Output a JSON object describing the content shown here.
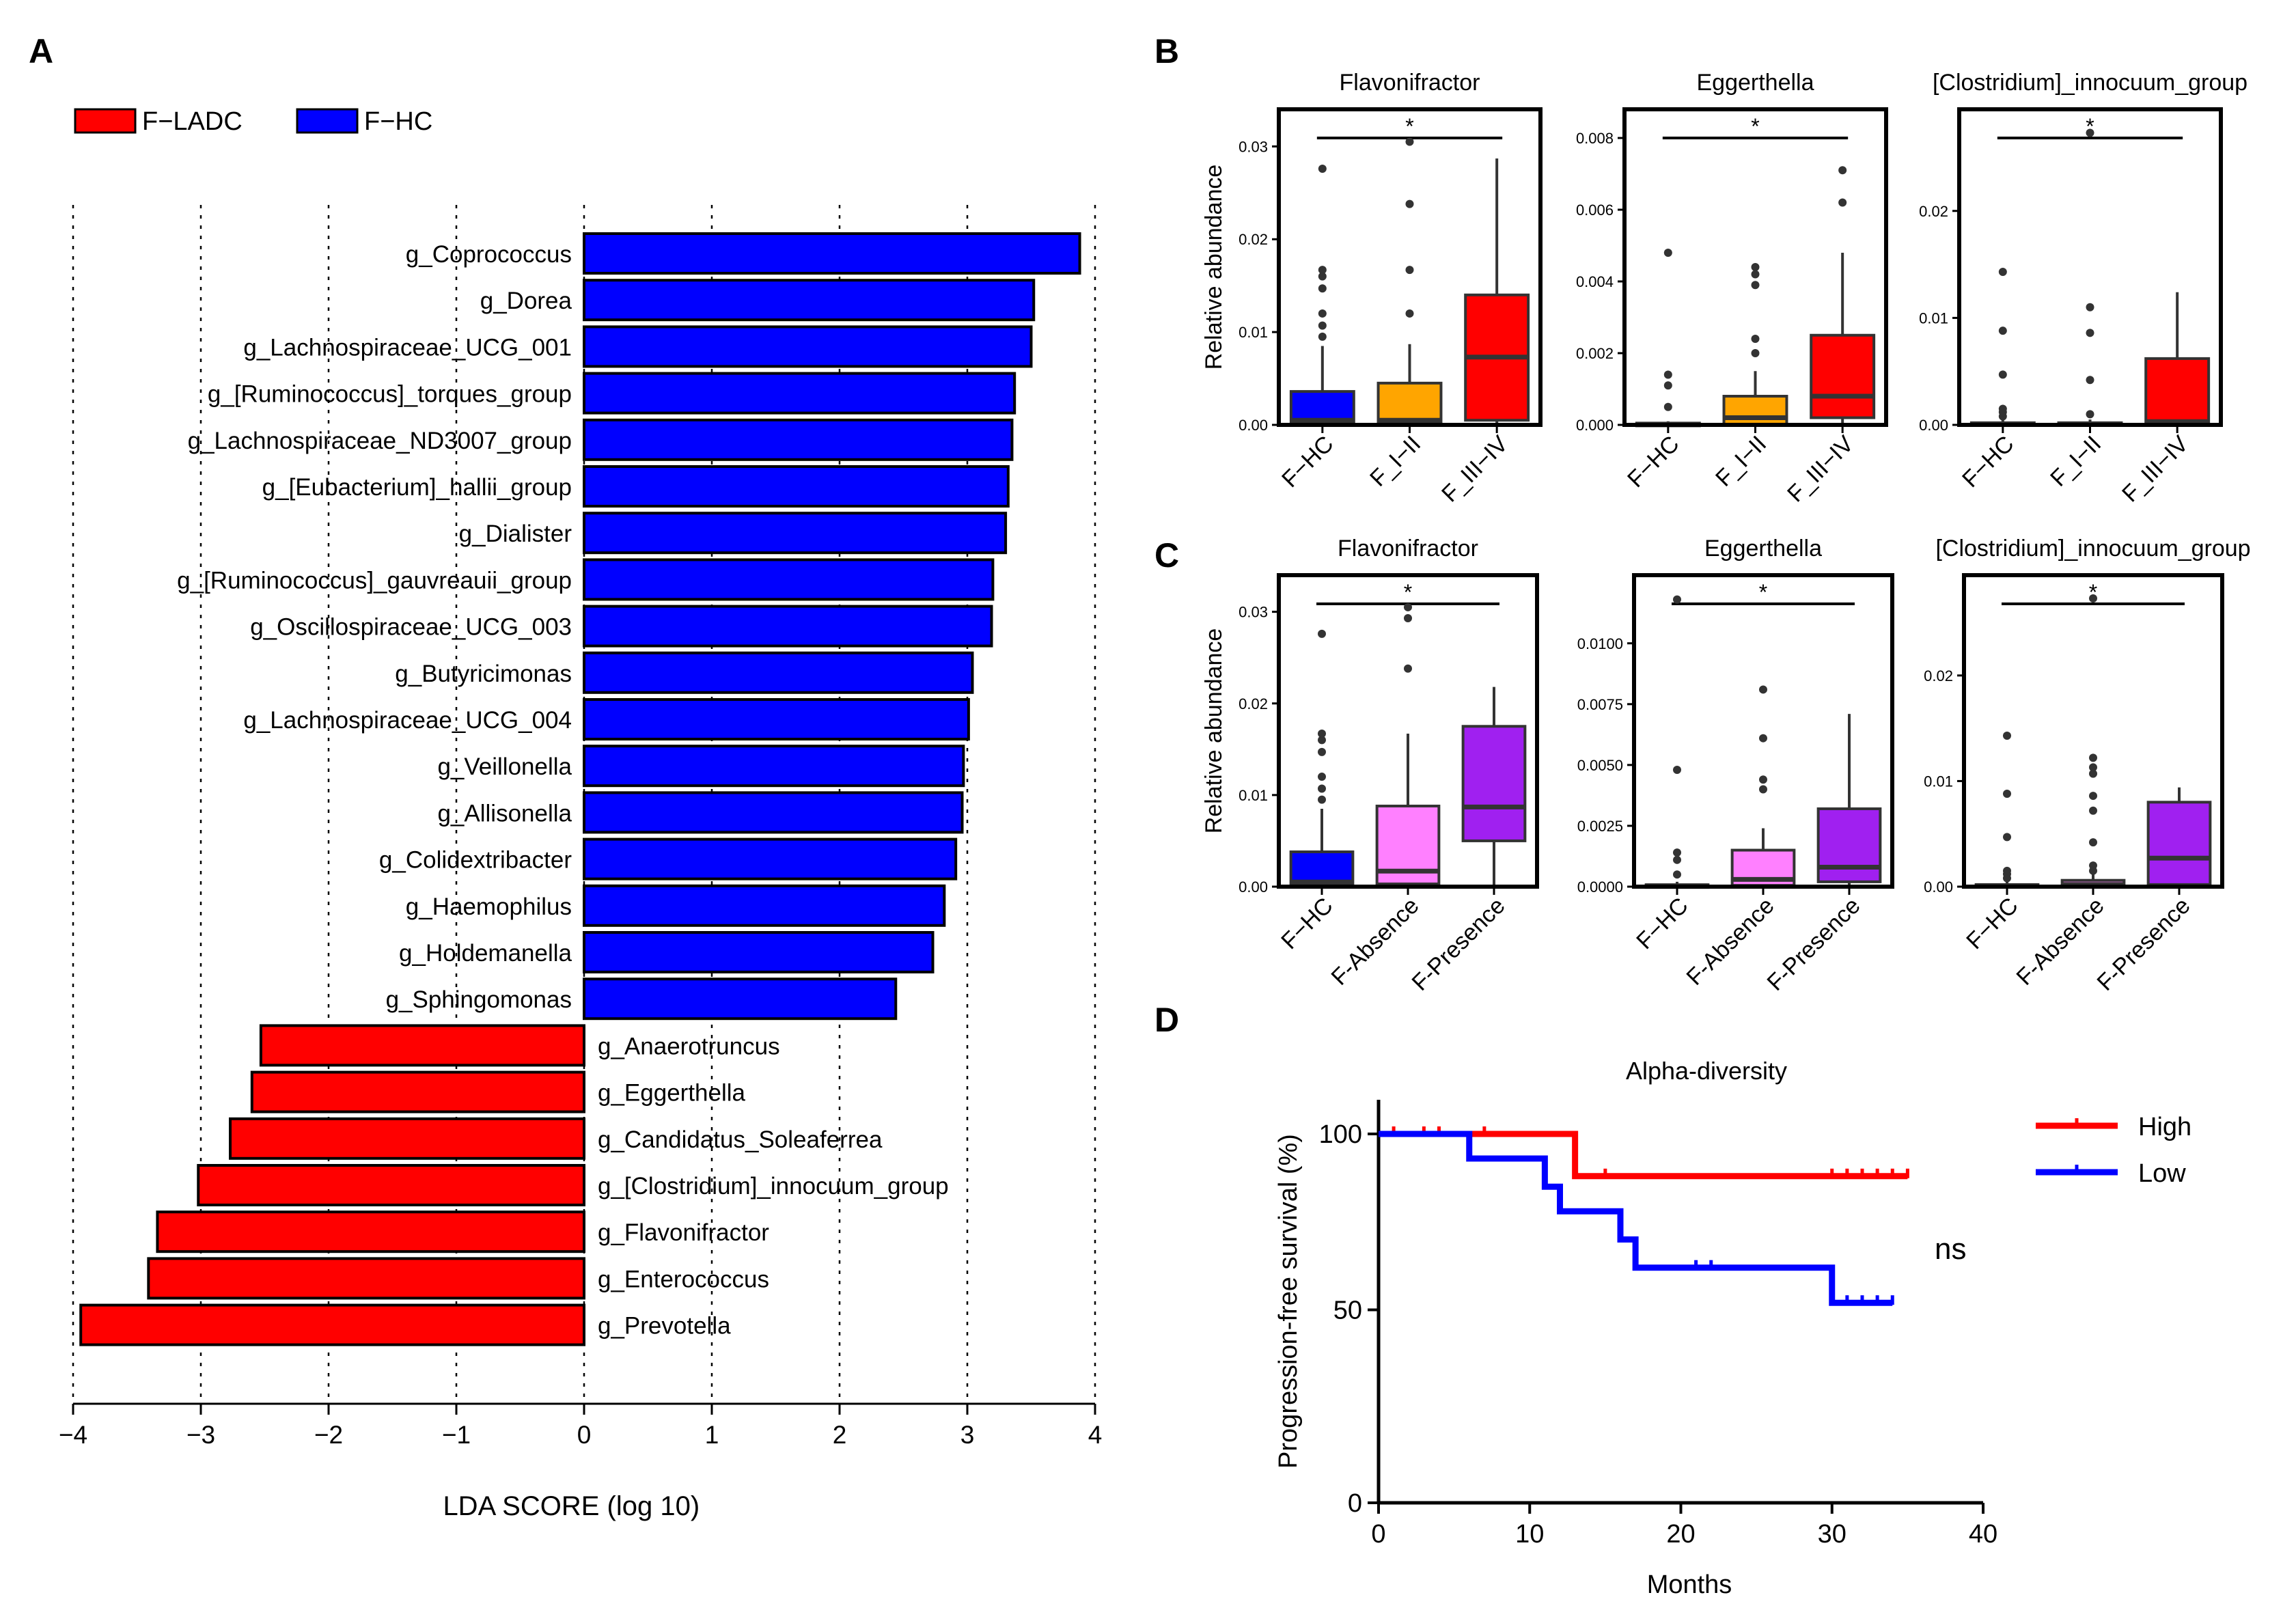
{
  "chart_data": [
    {
      "panel": "A",
      "type": "bar",
      "orientation": "horizontal",
      "xlabel": "LDA SCORE (log 10)",
      "xlim": [
        -4,
        4
      ],
      "xticks": [
        "−4",
        "−3",
        "−2",
        "−1",
        "0",
        "1",
        "2",
        "3",
        "4"
      ],
      "legend": {
        "position": "top-left",
        "items": [
          {
            "label": "F−LADC",
            "color": "#ff0000"
          },
          {
            "label": "F−HC",
            "color": "#0000ff"
          }
        ]
      },
      "categories": [
        "g_Coprococcus",
        "g_Dorea",
        "g_Lachnospiraceae_UCG_001",
        "g_[Ruminococcus]_torques_group",
        "g_Lachnospiraceae_ND3007_group",
        "g_[Eubacterium]_hallii_group",
        "g_Dialister",
        "g_[Ruminococcus]_gauvreauii_group",
        "g_Oscillospiraceae_UCG_003",
        "g_Butyricimonas",
        "g_Lachnospiraceae_UCG_004",
        "g_Veillonella",
        "g_Allisonella",
        "g_Colidextribacter",
        "g_Haemophilus",
        "g_Holdemanella",
        "g_Sphingomonas",
        "g_Anaerotruncus",
        "g_Eggerthella",
        "g_Candidatus_Soleaferrea",
        "g_[Clostridium]_innocuum_group",
        "g_Flavonifractor",
        "g_Enterococcus",
        "g_Prevotella"
      ],
      "values": [
        3.88,
        3.52,
        3.5,
        3.37,
        3.35,
        3.32,
        3.3,
        3.2,
        3.19,
        3.04,
        3.01,
        2.97,
        2.96,
        2.91,
        2.82,
        2.73,
        2.44,
        -2.53,
        -2.6,
        -2.77,
        -3.02,
        -3.34,
        -3.41,
        -3.94
      ],
      "group": [
        "F−HC",
        "F−HC",
        "F−HC",
        "F−HC",
        "F−HC",
        "F−HC",
        "F−HC",
        "F−HC",
        "F−HC",
        "F−HC",
        "F−HC",
        "F−HC",
        "F−HC",
        "F−HC",
        "F−HC",
        "F−HC",
        "F−HC",
        "F−LADC",
        "F−LADC",
        "F−LADC",
        "F−LADC",
        "F−LADC",
        "F−LADC",
        "F−LADC"
      ]
    },
    {
      "panel": "B",
      "type": "box",
      "ylabel": "Relative abundance",
      "colors": [
        "#0000ff",
        "#ffa500",
        "#ff0000"
      ],
      "subplots": [
        {
          "title": "Flavonifractor",
          "ylim": [
            0,
            0.034
          ],
          "yticks": [
            0,
            0.01,
            0.02,
            0.03
          ],
          "ytick_labels": [
            "0.00",
            "0.01",
            "0.02",
            "0.03"
          ],
          "groups": [
            "F−HC",
            "F_I−II",
            "F_III−IV"
          ],
          "boxes": [
            {
              "q1": 0.0003,
              "median": 0.0005,
              "q3": 0.0036,
              "whisker_low": 0,
              "whisker_high": 0.0085,
              "outliers": [
                0.0095,
                0.0107,
                0.012,
                0.0147,
                0.016,
                0.0167,
                0.0276
              ]
            },
            {
              "q1": 0.0003,
              "median": 0.0005,
              "q3": 0.0045,
              "whisker_low": 0,
              "whisker_high": 0.0087,
              "outliers": [
                0.012,
                0.0167,
                0.0238,
                0.0305
              ]
            },
            {
              "q1": 0.0005,
              "median": 0.0073,
              "q3": 0.014,
              "whisker_low": 0,
              "whisker_high": 0.0287,
              "outliers": []
            }
          ],
          "significance": {
            "from": 0,
            "to": 2,
            "label": "*"
          }
        },
        {
          "title": "Eggerthella",
          "ylim": [
            0,
            0.0088
          ],
          "yticks": [
            0,
            0.002,
            0.004,
            0.006,
            0.008
          ],
          "ytick_labels": [
            "0.000",
            "0.002",
            "0.004",
            "0.006",
            "0.008"
          ],
          "groups": [
            "F−HC",
            "F_I−II",
            "F_III−IV"
          ],
          "boxes": [
            {
              "q1": 0,
              "median": 2e-05,
              "q3": 5e-05,
              "whisker_low": 0,
              "whisker_high": 0.0001,
              "outliers": [
                0.0005,
                0.0011,
                0.0014,
                0.0048
              ]
            },
            {
              "q1": 2e-05,
              "median": 0.0002,
              "q3": 0.0008,
              "whisker_low": 0,
              "whisker_high": 0.0015,
              "outliers": [
                0.002,
                0.0024,
                0.0039,
                0.0042,
                0.0044
              ]
            },
            {
              "q1": 0.0002,
              "median": 0.0008,
              "q3": 0.0025,
              "whisker_low": 0,
              "whisker_high": 0.0048,
              "outliers": [
                0.0062,
                0.0071
              ]
            }
          ],
          "significance": {
            "from": 0,
            "to": 2,
            "label": "*"
          }
        },
        {
          "title": "[Clostridium]_innocuum_group",
          "ylim": [
            0,
            0.0295
          ],
          "yticks": [
            0,
            0.01,
            0.02
          ],
          "ytick_labels": [
            "0.00",
            "0.01",
            "0.02"
          ],
          "groups": [
            "F−HC",
            "F_I−II",
            "F_III−IV"
          ],
          "boxes": [
            {
              "q1": 0,
              "median": 5e-05,
              "q3": 0.0002,
              "whisker_low": 0,
              "whisker_high": 0.0005,
              "outliers": [
                0.0008,
                0.0012,
                0.0015,
                0.0047,
                0.0088,
                0.0143
              ]
            },
            {
              "q1": 0,
              "median": 5e-05,
              "q3": 0.0002,
              "whisker_low": 0,
              "whisker_high": 0.0005,
              "outliers": [
                0.001,
                0.0042,
                0.0086,
                0.011,
                0.0273
              ]
            },
            {
              "q1": 5e-05,
              "median": 0.0003,
              "q3": 0.0062,
              "whisker_low": 0,
              "whisker_high": 0.0124,
              "outliers": []
            }
          ],
          "significance": {
            "from": 0,
            "to": 2,
            "label": "*"
          }
        }
      ]
    },
    {
      "panel": "C",
      "type": "box",
      "ylabel": "Relative abundance",
      "colors": [
        "#0000ff",
        "#ff80ff",
        "#a020f0"
      ],
      "subplots": [
        {
          "title": "Flavonifractor",
          "ylim": [
            0,
            0.034
          ],
          "yticks": [
            0,
            0.01,
            0.02,
            0.03
          ],
          "ytick_labels": [
            "0.00",
            "0.01",
            "0.02",
            "0.03"
          ],
          "groups": [
            "F−HC",
            "F-Absence",
            "F-Presence"
          ],
          "boxes": [
            {
              "q1": 0.0003,
              "median": 0.0005,
              "q3": 0.0038,
              "whisker_low": 0,
              "whisker_high": 0.0085,
              "outliers": [
                0.0095,
                0.0107,
                0.012,
                0.0147,
                0.016,
                0.0167,
                0.0276
              ]
            },
            {
              "q1": 0.0003,
              "median": 0.0017,
              "q3": 0.0088,
              "whisker_low": 0,
              "whisker_high": 0.0167,
              "outliers": [
                0.0238,
                0.0293,
                0.0305
              ]
            },
            {
              "q1": 0.005,
              "median": 0.0087,
              "q3": 0.0175,
              "whisker_low": 0.0002,
              "whisker_high": 0.0218,
              "outliers": []
            }
          ],
          "significance": {
            "from": 0,
            "to": 2,
            "label": "*"
          }
        },
        {
          "title": "Eggerthella",
          "ylim": [
            0,
            0.0128
          ],
          "yticks": [
            0,
            0.0025,
            0.005,
            0.0075,
            0.01
          ],
          "ytick_labels": [
            "0.0000",
            "0.0025",
            "0.0050",
            "0.0075",
            "0.0100"
          ],
          "groups": [
            "F−HC",
            "F-Absence",
            "F-Presence"
          ],
          "boxes": [
            {
              "q1": 0,
              "median": 3e-05,
              "q3": 8e-05,
              "whisker_low": 0,
              "whisker_high": 0.0002,
              "outliers": [
                0.0005,
                0.0011,
                0.0014,
                0.0048,
                0.0118
              ]
            },
            {
              "q1": 5e-05,
              "median": 0.0003,
              "q3": 0.0015,
              "whisker_low": 0,
              "whisker_high": 0.0024,
              "outliers": [
                0.004,
                0.0044,
                0.0061,
                0.0081
              ]
            },
            {
              "q1": 0.0002,
              "median": 0.0008,
              "q3": 0.0032,
              "whisker_low": 0,
              "whisker_high": 0.0071,
              "outliers": []
            }
          ],
          "significance": {
            "from": 0,
            "to": 2,
            "label": "*"
          }
        },
        {
          "title": "[Clostridium]_innocuum_group",
          "ylim": [
            0,
            0.0295
          ],
          "yticks": [
            0,
            0.01,
            0.02
          ],
          "ytick_labels": [
            "0.00",
            "0.01",
            "0.02"
          ],
          "groups": [
            "F−HC",
            "F-Absence",
            "F-Presence"
          ],
          "boxes": [
            {
              "q1": 0,
              "median": 5e-05,
              "q3": 0.0002,
              "whisker_low": 0,
              "whisker_high": 0.0005,
              "outliers": [
                0.0008,
                0.0012,
                0.0015,
                0.0047,
                0.0088,
                0.0143
              ]
            },
            {
              "q1": 5e-05,
              "median": 0.0002,
              "q3": 0.0006,
              "whisker_low": 0,
              "whisker_high": 0.0012,
              "outliers": [
                0.0015,
                0.002,
                0.0042,
                0.0072,
                0.0086,
                0.0107,
                0.0113,
                0.0122,
                0.0273
              ]
            },
            {
              "q1": 0.0002,
              "median": 0.0027,
              "q3": 0.008,
              "whisker_low": 0,
              "whisker_high": 0.0094,
              "outliers": []
            }
          ],
          "significance": {
            "from": 0,
            "to": 2,
            "label": "*"
          }
        }
      ]
    },
    {
      "panel": "D",
      "type": "line",
      "subtype": "kaplan-meier",
      "title": "Alpha-diversity",
      "xlabel": "Months",
      "ylabel": "Progression-free survival (%)",
      "xlim": [
        0,
        40
      ],
      "ylim": [
        0,
        100
      ],
      "xticks": [
        0,
        10,
        20,
        30,
        40
      ],
      "yticks": [
        0,
        50,
        100
      ],
      "annotation": "ns",
      "legend": {
        "position": "top-right"
      },
      "series": [
        {
          "name": "High",
          "color": "#ff0000",
          "steps": [
            [
              0,
              100
            ],
            [
              13,
              100
            ],
            [
              13,
              88
            ],
            [
              35,
              88
            ]
          ],
          "censored": [
            [
              1,
              100
            ],
            [
              3,
              100
            ],
            [
              4,
              100
            ],
            [
              7,
              100
            ],
            [
              15,
              88
            ],
            [
              30,
              88
            ],
            [
              31,
              88
            ],
            [
              32,
              88
            ],
            [
              33,
              88
            ],
            [
              34,
              88
            ],
            [
              35,
              88
            ]
          ]
        },
        {
          "name": "Low",
          "color": "#0000ff",
          "steps": [
            [
              0,
              100
            ],
            [
              6,
              100
            ],
            [
              6,
              93
            ],
            [
              11,
              93
            ],
            [
              11,
              85
            ],
            [
              12,
              85
            ],
            [
              12,
              78
            ],
            [
              16,
              78
            ],
            [
              16,
              70
            ],
            [
              17,
              70
            ],
            [
              17,
              62
            ],
            [
              30,
              62
            ],
            [
              30,
              52
            ],
            [
              34,
              52
            ]
          ],
          "censored": [
            [
              21,
              62
            ],
            [
              22,
              62
            ],
            [
              31,
              52
            ],
            [
              32,
              52
            ],
            [
              33,
              52
            ],
            [
              34,
              52
            ]
          ]
        }
      ]
    }
  ],
  "panel_labels": [
    "A",
    "B",
    "C",
    "D"
  ]
}
